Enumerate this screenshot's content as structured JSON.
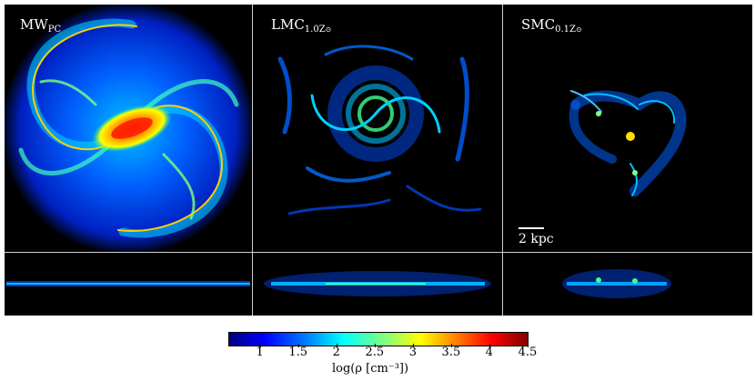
{
  "panels": [
    {
      "name": "MW",
      "subscript": "PC"
    },
    {
      "name": "LMC",
      "subscript": "1.0Z",
      "sun": "⊙"
    },
    {
      "name": "SMC",
      "subscript": "0.1Z",
      "sun": "⊙"
    }
  ],
  "scale_bar": {
    "label": "2 kpc"
  },
  "colorbar": {
    "ticks": [
      "1",
      "1.5",
      "2",
      "2.5",
      "3",
      "3.5",
      "4",
      "4.5"
    ],
    "tick_values": [
      1,
      1.5,
      2,
      2.5,
      3,
      3.5,
      4,
      4.5
    ],
    "range": [
      0.6,
      4.5
    ],
    "label": "log(ρ [cm⁻³])",
    "colormap": [
      "#000080",
      "#0000ff",
      "#0080ff",
      "#00ffff",
      "#80ff80",
      "#ffff00",
      "#ff8000",
      "#ff0000",
      "#800000"
    ]
  }
}
